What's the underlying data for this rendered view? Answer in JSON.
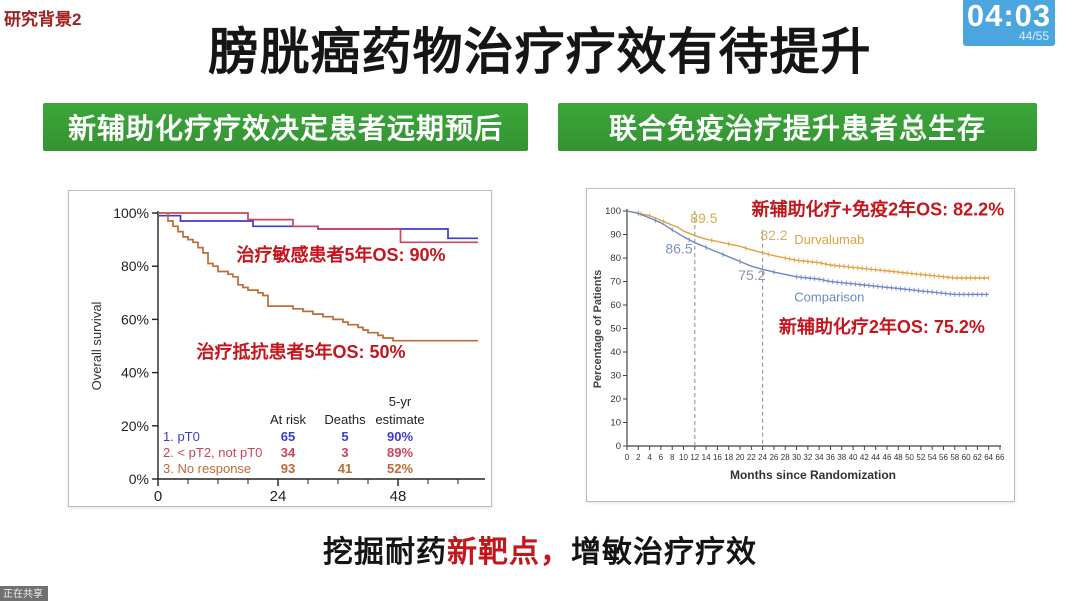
{
  "header": {
    "research_tag": "研究背景2",
    "title": "膀胱癌药物治疗疗效有待提升",
    "timer": {
      "time": "04:03",
      "slide_count": "44/55"
    }
  },
  "banners": {
    "left": "新辅助化疗疗效决定患者远期预后",
    "right": "联合免疫治疗提升患者总生存"
  },
  "footer": {
    "pre": "挖掘耐药",
    "highlight": "新靶点，",
    "post": "增敏治疗疗效"
  },
  "status_bar": {
    "sharing_label": "正在共享"
  },
  "colors": {
    "banner_green": "#3ca63a",
    "timer_blue": "#4ba5de",
    "accent_red": "#c5161d",
    "tag_red": "#a32020",
    "km_blue": "#3c3ccc",
    "km_red": "#c9455c",
    "km_orange": "#bf6a38",
    "durvalumab_tan": "#dfa23f",
    "comparison_blue": "#6e87c8"
  },
  "chart_data": [
    {
      "type": "line",
      "name": "km-overall-survival-by-response",
      "title": "",
      "xlabel": "",
      "ylabel": "Overall survival",
      "xlim": [
        0,
        65
      ],
      "ylim": [
        0,
        100
      ],
      "x_major_ticks": [
        0,
        24,
        48
      ],
      "x_minor_ticks": [
        6,
        12,
        18,
        30,
        36,
        42,
        54,
        60
      ],
      "y_ticks": [
        0,
        20,
        40,
        60,
        80,
        100
      ],
      "y_tick_suffix": "%",
      "step": true,
      "grid": false,
      "series": [
        {
          "name": "1. pT0",
          "color": "#3c3ccc",
          "points": [
            [
              0,
              99
            ],
            [
              4.5,
              99
            ],
            [
              4.5,
              97
            ],
            [
              19,
              97
            ],
            [
              19,
              95
            ],
            [
              32,
              95
            ],
            [
              32,
              94
            ],
            [
              58,
              94
            ],
            [
              58,
              90.5
            ],
            [
              64,
              90.5
            ]
          ]
        },
        {
          "name": "2. < pT2, not pT0",
          "color": "#c9455c",
          "points": [
            [
              0,
              100
            ],
            [
              18,
              100
            ],
            [
              18,
              97.5
            ],
            [
              27,
              97.5
            ],
            [
              27,
              95
            ],
            [
              32,
              95
            ],
            [
              32,
              94
            ],
            [
              48.5,
              94
            ],
            [
              48.5,
              89
            ],
            [
              64,
              89
            ]
          ]
        },
        {
          "name": "3. No response",
          "color": "#bf6a38",
          "points": [
            [
              0,
              100
            ],
            [
              2,
              100
            ],
            [
              2,
              97
            ],
            [
              3,
              95
            ],
            [
              4,
              93
            ],
            [
              5,
              91
            ],
            [
              6,
              90
            ],
            [
              7,
              89
            ],
            [
              8,
              87
            ],
            [
              9,
              85
            ],
            [
              10,
              81
            ],
            [
              11,
              80
            ],
            [
              12,
              78
            ],
            [
              14,
              77
            ],
            [
              15,
              76
            ],
            [
              16,
              73
            ],
            [
              17,
              72
            ],
            [
              18,
              71
            ],
            [
              20,
              70
            ],
            [
              21,
              69
            ],
            [
              22,
              65
            ],
            [
              26,
              65
            ],
            [
              27,
              64
            ],
            [
              29,
              63
            ],
            [
              31,
              62
            ],
            [
              33,
              61
            ],
            [
              35,
              60
            ],
            [
              37,
              59
            ],
            [
              38,
              58
            ],
            [
              40,
              57
            ],
            [
              41,
              56
            ],
            [
              42,
              55
            ],
            [
              44,
              54
            ],
            [
              45,
              53
            ],
            [
              47,
              52
            ],
            [
              64,
              52
            ]
          ]
        }
      ],
      "annotations": [
        {
          "text": "治疗敏感患者5年OS: 90%",
          "x": 36.6,
          "y": 82,
          "color": "#c5161d",
          "size": 18,
          "weight": "bold"
        },
        {
          "text": "治疗抵抗患者5年OS: 50%",
          "x": 28.6,
          "y": 45.5,
          "color": "#c5161d",
          "size": 18,
          "weight": "bold"
        }
      ],
      "risk_table": {
        "col_headers": [
          "At risk",
          "Deaths"
        ],
        "estimate_header": [
          "5-yr",
          "estimate"
        ],
        "rows": [
          {
            "label": "1. pT0",
            "at_risk": "65",
            "deaths": "5",
            "estimate": "90%",
            "color": "#3c3ccc"
          },
          {
            "label": "2. < pT2, not pT0",
            "at_risk": "34",
            "deaths": "3",
            "estimate": "89%",
            "color": "#c9455c"
          },
          {
            "label": "3. No response",
            "at_risk": "93",
            "deaths": "41",
            "estimate": "52%",
            "color": "#bf6a38"
          }
        ]
      }
    },
    {
      "type": "line",
      "name": "os-durvalumab-vs-comparison",
      "title": "",
      "xlabel": "Months since Randomization",
      "ylabel": "Percentage of Patients",
      "xlim": [
        0,
        66
      ],
      "x_tick_step": 2,
      "ylim": [
        0,
        100
      ],
      "y_tick_step": 10,
      "grid": false,
      "dashed": [
        {
          "x": 12,
          "y_top": 100
        },
        {
          "x": 24,
          "y_top": 92
        }
      ],
      "series": [
        {
          "name": "Durvalumab",
          "color": "#dfa23f",
          "points": [
            [
              0,
              100
            ],
            [
              2,
              99
            ],
            [
              4,
              98
            ],
            [
              5,
              97
            ],
            [
              6,
              96
            ],
            [
              7,
              95
            ],
            [
              8,
              94
            ],
            [
              9,
              93
            ],
            [
              10,
              91.5
            ],
            [
              11,
              90.5
            ],
            [
              12,
              89.5
            ],
            [
              14,
              88
            ],
            [
              16,
              87
            ],
            [
              18,
              86
            ],
            [
              20,
              85
            ],
            [
              22,
              83.5
            ],
            [
              24,
              82.2
            ],
            [
              26,
              81
            ],
            [
              28,
              80
            ],
            [
              30,
              79
            ],
            [
              32,
              78.5
            ],
            [
              34,
              78
            ],
            [
              36,
              77
            ],
            [
              38,
              76.5
            ],
            [
              40,
              76
            ],
            [
              42,
              75.5
            ],
            [
              44,
              75
            ],
            [
              46,
              74.5
            ],
            [
              48,
              74
            ],
            [
              50,
              73.5
            ],
            [
              52,
              73
            ],
            [
              54,
              72.5
            ],
            [
              56,
              72
            ],
            [
              58,
              71.5
            ],
            [
              64,
              71.5
            ]
          ],
          "censor_range": [
            28,
            64,
            0.8
          ],
          "censors": [
            2.5,
            4,
            6.5,
            15,
            18,
            21,
            25
          ]
        },
        {
          "name": "Comparison",
          "color": "#6e87c8",
          "points": [
            [
              0,
              100
            ],
            [
              2,
              99
            ],
            [
              4,
              97
            ],
            [
              6,
              95
            ],
            [
              8,
              92
            ],
            [
              10,
              89
            ],
            [
              12,
              86.5
            ],
            [
              14,
              84.5
            ],
            [
              16,
              82.5
            ],
            [
              18,
              80.5
            ],
            [
              20,
              78.5
            ],
            [
              22,
              76.5
            ],
            [
              24,
              75.2
            ],
            [
              26,
              74
            ],
            [
              28,
              73
            ],
            [
              30,
              72
            ],
            [
              32,
              71.5
            ],
            [
              34,
              71
            ],
            [
              36,
              70
            ],
            [
              38,
              69.5
            ],
            [
              40,
              69
            ],
            [
              42,
              68.5
            ],
            [
              44,
              68
            ],
            [
              46,
              67.5
            ],
            [
              48,
              67
            ],
            [
              50,
              66.5
            ],
            [
              52,
              66
            ],
            [
              54,
              65.5
            ],
            [
              56,
              65
            ],
            [
              58,
              64.5
            ],
            [
              64,
              64.5
            ]
          ],
          "censor_range": [
            30,
            64,
            0.8
          ],
          "censors": [
            2,
            5,
            8,
            11,
            14,
            17,
            20,
            26
          ]
        }
      ],
      "key_values": {
        "durvalumab_12m": 89.5,
        "comparison_12m": 86.5,
        "durvalumab_24m": 82.2,
        "comparison_24m": 75.2
      },
      "annotations": [
        {
          "text": "89.5",
          "x": 13.6,
          "y": 95,
          "color": "#d9a94f",
          "size": 14
        },
        {
          "text": "86.5",
          "x": 9.2,
          "y": 82,
          "color": "#7b93c9",
          "size": 14
        },
        {
          "text": "82.2",
          "x": 26.0,
          "y": 87.7,
          "color": "#d4b06a",
          "size": 14
        },
        {
          "text": "75.2",
          "x": 22.1,
          "y": 70.6,
          "color": "#8795a8",
          "size": 14
        },
        {
          "text": "Durvalumab",
          "x": 35.8,
          "y": 86,
          "color": "#dfa23f",
          "size": 13
        },
        {
          "text": "Comparison",
          "x": 35.8,
          "y": 61.5,
          "color": "#6e87c8",
          "size": 13
        },
        {
          "text": "新辅助化疗+免疫2年OS: 82.2%",
          "x": 44.4,
          "y": 98,
          "color": "#c5161d",
          "size": 18,
          "weight": "bold"
        },
        {
          "text": "新辅助化疗2年OS: 75.2%",
          "x": 45.1,
          "y": 48,
          "color": "#c5161d",
          "size": 18,
          "weight": "bold"
        }
      ]
    }
  ]
}
